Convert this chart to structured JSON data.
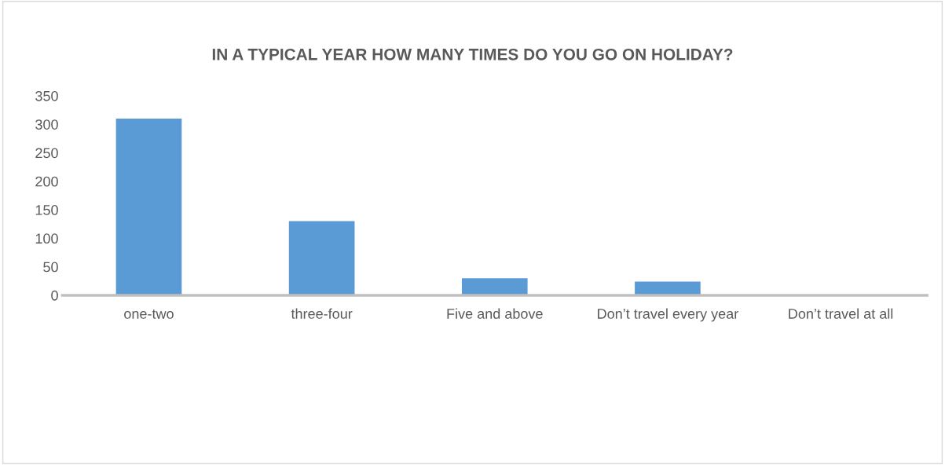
{
  "chart_data": {
    "type": "bar",
    "title": "IN A TYPICAL YEAR HOW MANY TIMES DO YOU GO ON HOLIDAY?",
    "categories": [
      "one-two",
      "three-four",
      "Five and above",
      "Don’t travel every year",
      "Don’t travel at all"
    ],
    "values": [
      310,
      130,
      30,
      24,
      0
    ],
    "color": "#5b9bd5",
    "ylim": [
      0,
      350
    ],
    "yticks": [
      0,
      50,
      100,
      150,
      200,
      250,
      300,
      350
    ],
    "grid": false,
    "legend": false
  }
}
